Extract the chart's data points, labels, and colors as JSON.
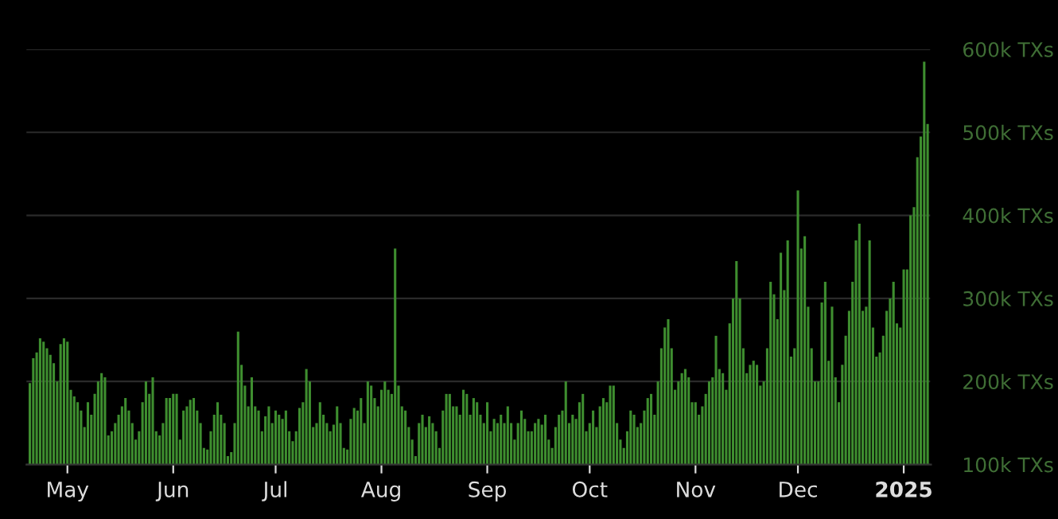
{
  "chart_data": {
    "type": "bar",
    "color": "#3e8e2f",
    "grid": "y",
    "ylim": [
      100000,
      600000
    ],
    "yticks": [
      {
        "value": 100000,
        "label": "100k TXs"
      },
      {
        "value": 200000,
        "label": "200k TXs"
      },
      {
        "value": 300000,
        "label": "300k TXs"
      },
      {
        "value": 400000,
        "label": "400k TXs"
      },
      {
        "value": 500000,
        "label": "500k TXs"
      },
      {
        "value": 600000,
        "label": "600k TXs"
      }
    ],
    "xlim": [
      "2024-04-19",
      "2025-01-09"
    ],
    "xticks": [
      {
        "value": "2024-05-01",
        "label": "May"
      },
      {
        "value": "2024-06-01",
        "label": "Jun"
      },
      {
        "value": "2024-07-01",
        "label": "Jul"
      },
      {
        "value": "2024-08-01",
        "label": "Aug"
      },
      {
        "value": "2024-09-01",
        "label": "Sep"
      },
      {
        "value": "2024-10-01",
        "label": "Oct"
      },
      {
        "value": "2024-11-01",
        "label": "Nov"
      },
      {
        "value": "2024-12-01",
        "label": "Dec"
      },
      {
        "value": "2025-01-01",
        "label": "2025"
      }
    ],
    "x": [
      "2024-04-20",
      "2024-04-21",
      "2024-04-22",
      "2024-04-23",
      "2024-04-24",
      "2024-04-25",
      "2024-04-26",
      "2024-04-27",
      "2024-04-28",
      "2024-04-29",
      "2024-04-30",
      "2024-05-01",
      "2024-05-02",
      "2024-05-03",
      "2024-05-04",
      "2024-05-05",
      "2024-05-06",
      "2024-05-07",
      "2024-05-08",
      "2024-05-09",
      "2024-05-10",
      "2024-05-11",
      "2024-05-12",
      "2024-05-13",
      "2024-05-14",
      "2024-05-15",
      "2024-05-16",
      "2024-05-17",
      "2024-05-18",
      "2024-05-19",
      "2024-05-20",
      "2024-05-21",
      "2024-05-22",
      "2024-05-23",
      "2024-05-24",
      "2024-05-25",
      "2024-05-26",
      "2024-05-27",
      "2024-05-28",
      "2024-05-29",
      "2024-05-30",
      "2024-05-31",
      "2024-06-01",
      "2024-06-02",
      "2024-06-03",
      "2024-06-04",
      "2024-06-05",
      "2024-06-06",
      "2024-06-07",
      "2024-06-08",
      "2024-06-09",
      "2024-06-10",
      "2024-06-11",
      "2024-06-12",
      "2024-06-13",
      "2024-06-14",
      "2024-06-15",
      "2024-06-16",
      "2024-06-17",
      "2024-06-18",
      "2024-06-19",
      "2024-06-20",
      "2024-06-21",
      "2024-06-22",
      "2024-06-23",
      "2024-06-24",
      "2024-06-25",
      "2024-06-26",
      "2024-06-27",
      "2024-06-28",
      "2024-06-29",
      "2024-06-30",
      "2024-07-01",
      "2024-07-02",
      "2024-07-03",
      "2024-07-04",
      "2024-07-05",
      "2024-07-06",
      "2024-07-07",
      "2024-07-08",
      "2024-07-09",
      "2024-07-10",
      "2024-07-11",
      "2024-07-12",
      "2024-07-13",
      "2024-07-14",
      "2024-07-15",
      "2024-07-16",
      "2024-07-17",
      "2024-07-18",
      "2024-07-19",
      "2024-07-20",
      "2024-07-21",
      "2024-07-22",
      "2024-07-23",
      "2024-07-24",
      "2024-07-25",
      "2024-07-26",
      "2024-07-27",
      "2024-07-28",
      "2024-07-29",
      "2024-07-30",
      "2024-07-31",
      "2024-08-01",
      "2024-08-02",
      "2024-08-03",
      "2024-08-04",
      "2024-08-05",
      "2024-08-06",
      "2024-08-07",
      "2024-08-08",
      "2024-08-09",
      "2024-08-10",
      "2024-08-11",
      "2024-08-12",
      "2024-08-13",
      "2024-08-14",
      "2024-08-15",
      "2024-08-16",
      "2024-08-17",
      "2024-08-18",
      "2024-08-19",
      "2024-08-20",
      "2024-08-21",
      "2024-08-22",
      "2024-08-23",
      "2024-08-24",
      "2024-08-25",
      "2024-08-26",
      "2024-08-27",
      "2024-08-28",
      "2024-08-29",
      "2024-08-30",
      "2024-08-31",
      "2024-09-01",
      "2024-09-02",
      "2024-09-03",
      "2024-09-04",
      "2024-09-05",
      "2024-09-06",
      "2024-09-07",
      "2024-09-08",
      "2024-09-09",
      "2024-09-10",
      "2024-09-11",
      "2024-09-12",
      "2024-09-13",
      "2024-09-14",
      "2024-09-15",
      "2024-09-16",
      "2024-09-17",
      "2024-09-18",
      "2024-09-19",
      "2024-09-20",
      "2024-09-21",
      "2024-09-22",
      "2024-09-23",
      "2024-09-24",
      "2024-09-25",
      "2024-09-26",
      "2024-09-27",
      "2024-09-28",
      "2024-09-29",
      "2024-09-30",
      "2024-10-01",
      "2024-10-02",
      "2024-10-03",
      "2024-10-04",
      "2024-10-05",
      "2024-10-06",
      "2024-10-07",
      "2024-10-08",
      "2024-10-09",
      "2024-10-10",
      "2024-10-11",
      "2024-10-12",
      "2024-10-13",
      "2024-10-14",
      "2024-10-15",
      "2024-10-16",
      "2024-10-17",
      "2024-10-18",
      "2024-10-19",
      "2024-10-20",
      "2024-10-21",
      "2024-10-22",
      "2024-10-23",
      "2024-10-24",
      "2024-10-25",
      "2024-10-26",
      "2024-10-27",
      "2024-10-28",
      "2024-10-29",
      "2024-10-30",
      "2024-10-31",
      "2024-11-01",
      "2024-11-02",
      "2024-11-03",
      "2024-11-04",
      "2024-11-05",
      "2024-11-06",
      "2024-11-07",
      "2024-11-08",
      "2024-11-09",
      "2024-11-10",
      "2024-11-11",
      "2024-11-12",
      "2024-11-13",
      "2024-11-14",
      "2024-11-15",
      "2024-11-16",
      "2024-11-17",
      "2024-11-18",
      "2024-11-19",
      "2024-11-20",
      "2024-11-21",
      "2024-11-22",
      "2024-11-23",
      "2024-11-24",
      "2024-11-25",
      "2024-11-26",
      "2024-11-27",
      "2024-11-28",
      "2024-11-29",
      "2024-11-30",
      "2024-12-01",
      "2024-12-02",
      "2024-12-03",
      "2024-12-04",
      "2024-12-05",
      "2024-12-06",
      "2024-12-07",
      "2024-12-08",
      "2024-12-09",
      "2024-12-10",
      "2024-12-11",
      "2024-12-12",
      "2024-12-13",
      "2024-12-14",
      "2024-12-15",
      "2024-12-16",
      "2024-12-17",
      "2024-12-18",
      "2024-12-19",
      "2024-12-20",
      "2024-12-21",
      "2024-12-22",
      "2024-12-23",
      "2024-12-24",
      "2024-12-25",
      "2024-12-26",
      "2024-12-27",
      "2024-12-28",
      "2024-12-29",
      "2024-12-30",
      "2024-12-31",
      "2025-01-01",
      "2025-01-02",
      "2025-01-03",
      "2025-01-04",
      "2025-01-05",
      "2025-01-06",
      "2025-01-07",
      "2025-01-08"
    ],
    "values": [
      198000,
      228000,
      235000,
      252000,
      248000,
      240000,
      232000,
      222000,
      200000,
      245000,
      252000,
      248000,
      190000,
      182000,
      175000,
      165000,
      145000,
      175000,
      160000,
      185000,
      200000,
      210000,
      205000,
      135000,
      140000,
      150000,
      160000,
      170000,
      180000,
      165000,
      150000,
      130000,
      140000,
      175000,
      200000,
      185000,
      205000,
      140000,
      135000,
      150000,
      180000,
      180000,
      185000,
      185000,
      130000,
      165000,
      170000,
      178000,
      180000,
      165000,
      150000,
      120000,
      118000,
      140000,
      160000,
      175000,
      160000,
      150000,
      110000,
      115000,
      150000,
      260000,
      220000,
      195000,
      170000,
      205000,
      170000,
      165000,
      140000,
      158000,
      170000,
      150000,
      165000,
      160000,
      155000,
      165000,
      140000,
      128000,
      140000,
      168000,
      175000,
      215000,
      200000,
      145000,
      150000,
      175000,
      160000,
      150000,
      140000,
      148000,
      170000,
      150000,
      120000,
      118000,
      155000,
      168000,
      165000,
      180000,
      150000,
      200000,
      195000,
      180000,
      170000,
      190000,
      200000,
      190000,
      185000,
      360000,
      195000,
      170000,
      165000,
      145000,
      130000,
      110000,
      150000,
      160000,
      145000,
      158000,
      150000,
      140000,
      120000,
      165000,
      185000,
      185000,
      170000,
      170000,
      160000,
      190000,
      185000,
      160000,
      180000,
      175000,
      160000,
      150000,
      175000,
      140000,
      155000,
      150000,
      160000,
      150000,
      170000,
      150000,
      130000,
      150000,
      165000,
      155000,
      140000,
      140000,
      150000,
      155000,
      148000,
      160000,
      130000,
      120000,
      145000,
      160000,
      165000,
      200000,
      150000,
      160000,
      155000,
      175000,
      185000,
      140000,
      150000,
      165000,
      145000,
      170000,
      180000,
      175000,
      195000,
      195000,
      150000,
      130000,
      120000,
      140000,
      165000,
      160000,
      145000,
      150000,
      165000,
      180000,
      185000,
      160000,
      200000,
      240000,
      265000,
      275000,
      240000,
      190000,
      200000,
      210000,
      215000,
      205000,
      175000,
      175000,
      160000,
      170000,
      185000,
      200000,
      205000,
      255000,
      215000,
      210000,
      190000,
      270000,
      300000,
      345000,
      300000,
      240000,
      210000,
      220000,
      225000,
      220000,
      195000,
      200000,
      240000,
      320000,
      305000,
      275000,
      355000,
      310000,
      370000,
      230000,
      240000,
      430000,
      360000,
      375000,
      290000,
      240000,
      200000,
      200000,
      295000,
      320000,
      225000,
      290000,
      205000,
      175000,
      220000,
      255000,
      285000,
      320000,
      370000,
      390000,
      285000,
      290000,
      370000,
      265000,
      230000,
      235000,
      255000,
      285000,
      300000,
      320000,
      270000,
      265000,
      335000,
      335000,
      400000,
      410000,
      470000,
      495000,
      585000,
      510000
    ]
  }
}
